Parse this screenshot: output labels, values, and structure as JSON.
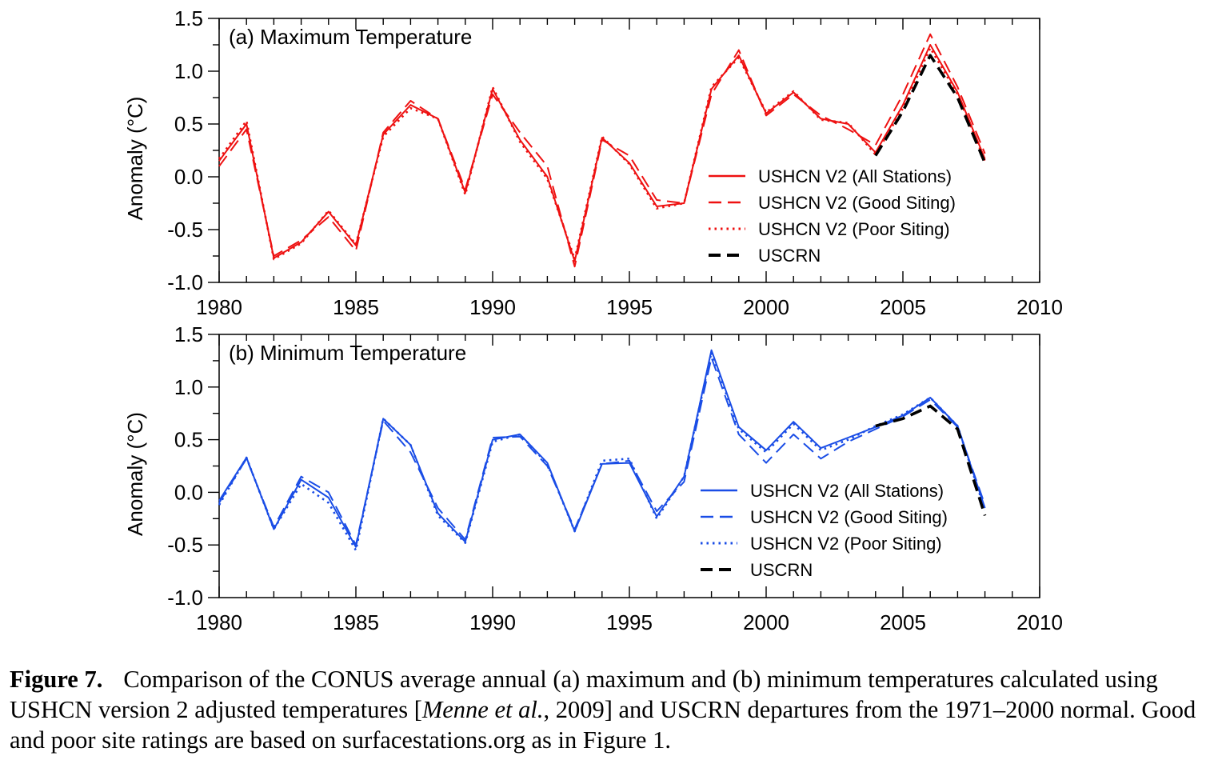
{
  "chart_data": [
    {
      "type": "line",
      "title": "(a) Maximum Temperature",
      "xlabel": "",
      "ylabel": "Anomaly (°C)",
      "xlim": [
        1980,
        2010
      ],
      "ylim": [
        -1.0,
        1.5
      ],
      "xticks": [
        "1980",
        "1985",
        "1990",
        "1995",
        "2000",
        "2005",
        "2010"
      ],
      "yticks": [
        "1.5",
        "1.0",
        "0.5",
        "0.0",
        "-0.5",
        "-1.0"
      ],
      "grid": false,
      "legend": "center-right",
      "colors": {
        "main": "#ee1111",
        "uscrn": "#000000"
      },
      "series": [
        {
          "name": "USHCN V2 (All Stations)",
          "style": "solid",
          "x": [
            1980,
            1981,
            1982,
            1983,
            1984,
            1985,
            1986,
            1987,
            1988,
            1989,
            1990,
            1991,
            1992,
            1993,
            1994,
            1995,
            1996,
            1997,
            1998,
            1999,
            2000,
            2001,
            2002,
            2003,
            2004,
            2005,
            2006,
            2007,
            2008
          ],
          "y": [
            0.15,
            0.5,
            -0.77,
            -0.62,
            -0.33,
            -0.65,
            0.4,
            0.68,
            0.55,
            -0.15,
            0.83,
            0.35,
            0.0,
            -0.8,
            0.37,
            0.13,
            -0.28,
            -0.25,
            0.83,
            1.15,
            0.6,
            0.8,
            0.55,
            0.5,
            0.23,
            0.68,
            1.25,
            0.8,
            0.17
          ]
        },
        {
          "name": "USHCN V2 (Good Siting)",
          "style": "dashed",
          "x": [
            1980,
            1981,
            1982,
            1983,
            1984,
            1985,
            1986,
            1987,
            1988,
            1989,
            1990,
            1991,
            1992,
            1993,
            1994,
            1995,
            1996,
            1997,
            1998,
            1999,
            2000,
            2001,
            2002,
            2003,
            2004,
            2005,
            2006,
            2007,
            2008
          ],
          "y": [
            0.1,
            0.45,
            -0.75,
            -0.6,
            -0.38,
            -0.7,
            0.42,
            0.72,
            0.55,
            -0.12,
            0.78,
            0.42,
            0.1,
            -0.85,
            0.35,
            0.2,
            -0.22,
            -0.25,
            0.78,
            1.2,
            0.58,
            0.78,
            0.58,
            0.45,
            0.3,
            0.78,
            1.35,
            0.85,
            0.22
          ]
        },
        {
          "name": "USHCN V2 (Poor Siting)",
          "style": "dotted",
          "x": [
            1980,
            1981,
            1982,
            1983,
            1984,
            1985,
            1986,
            1987,
            1988,
            1989,
            1990,
            1991,
            1992,
            1993,
            1994,
            1995,
            1996,
            1997,
            1998,
            1999,
            2000,
            2001,
            2002,
            2003,
            2004,
            2005,
            2006,
            2007,
            2008
          ],
          "y": [
            0.17,
            0.53,
            -0.78,
            -0.63,
            -0.32,
            -0.64,
            0.38,
            0.65,
            0.55,
            -0.17,
            0.85,
            0.33,
            -0.02,
            -0.78,
            0.38,
            0.12,
            -0.3,
            -0.25,
            0.85,
            1.13,
            0.61,
            0.81,
            0.54,
            0.51,
            0.21,
            0.65,
            1.22,
            0.78,
            0.15
          ]
        },
        {
          "name": "USCRN",
          "style": "black-dashed",
          "x": [
            2004,
            2005,
            2006,
            2007,
            2008
          ],
          "y": [
            0.2,
            0.62,
            1.15,
            0.75,
            0.13
          ]
        }
      ]
    },
    {
      "type": "line",
      "title": "(b) Minimum Temperature",
      "xlabel": "",
      "ylabel": "Anomaly (°C)",
      "xlim": [
        1980,
        2010
      ],
      "ylim": [
        -1.0,
        1.5
      ],
      "xticks": [
        "1980",
        "1985",
        "1990",
        "1995",
        "2000",
        "2005",
        "2010"
      ],
      "yticks": [
        "1.5",
        "1.0",
        "0.5",
        "0.0",
        "-0.5",
        "-1.0"
      ],
      "grid": false,
      "legend": "center-right",
      "colors": {
        "main": "#1a4de6",
        "uscrn": "#000000"
      },
      "series": [
        {
          "name": "USHCN V2 (All Stations)",
          "style": "solid",
          "x": [
            1980,
            1981,
            1982,
            1983,
            1984,
            1985,
            1986,
            1987,
            1988,
            1989,
            1990,
            1991,
            1992,
            1993,
            1994,
            1995,
            1996,
            1997,
            1998,
            1999,
            2000,
            2001,
            2002,
            2003,
            2004,
            2005,
            2006,
            2007,
            2008
          ],
          "y": [
            -0.08,
            0.33,
            -0.35,
            0.12,
            -0.05,
            -0.52,
            0.7,
            0.45,
            -0.2,
            -0.47,
            0.5,
            0.55,
            0.28,
            -0.37,
            0.27,
            0.28,
            -0.23,
            0.15,
            1.35,
            0.62,
            0.4,
            0.67,
            0.42,
            0.52,
            0.62,
            0.73,
            0.9,
            0.63,
            -0.15
          ]
        },
        {
          "name": "USHCN V2 (Good Siting)",
          "style": "dashed",
          "x": [
            1980,
            1981,
            1982,
            1983,
            1984,
            1985,
            1986,
            1987,
            1988,
            1989,
            1990,
            1991,
            1992,
            1993,
            1994,
            1995,
            1996,
            1997,
            1998,
            1999,
            2000,
            2001,
            2002,
            2003,
            2004,
            2005,
            2006,
            2007,
            2008
          ],
          "y": [
            -0.1,
            0.32,
            -0.33,
            0.15,
            0.0,
            -0.5,
            0.68,
            0.38,
            -0.15,
            -0.45,
            0.52,
            0.53,
            0.25,
            -0.35,
            0.27,
            0.3,
            -0.18,
            0.1,
            1.28,
            0.55,
            0.28,
            0.55,
            0.32,
            0.48,
            0.6,
            0.72,
            0.88,
            0.62,
            -0.12
          ]
        },
        {
          "name": "USHCN V2 (Poor Siting)",
          "style": "dotted",
          "x": [
            1980,
            1981,
            1982,
            1983,
            1984,
            1985,
            1986,
            1987,
            1988,
            1989,
            1990,
            1991,
            1992,
            1993,
            1994,
            1995,
            1996,
            1997,
            1998,
            1999,
            2000,
            2001,
            2002,
            2003,
            2004,
            2005,
            2006,
            2007,
            2008
          ],
          "y": [
            -0.12,
            0.33,
            -0.35,
            0.08,
            -0.1,
            -0.55,
            0.7,
            0.45,
            -0.22,
            -0.48,
            0.48,
            0.55,
            0.27,
            -0.37,
            0.3,
            0.32,
            -0.25,
            0.15,
            1.33,
            0.6,
            0.38,
            0.65,
            0.4,
            0.5,
            0.63,
            0.74,
            0.9,
            0.63,
            -0.17
          ]
        },
        {
          "name": "USCRN",
          "style": "black-dashed",
          "x": [
            2004,
            2005,
            2006,
            2007,
            2008
          ],
          "y": [
            0.63,
            0.7,
            0.82,
            0.6,
            -0.22
          ]
        }
      ]
    }
  ],
  "caption": {
    "label": "Figure 7.",
    "text_1": "Comparison of the CONUS average annual (a) maximum and (b) minimum temperatures calculated using USHCN version 2 adjusted temperatures [",
    "citation_italic": "Menne et al.",
    "text_2": ", 2009] and USCRN departures from the 1971–2000 normal. Good and poor site ratings are based on surfacestations.org as in Figure 1."
  }
}
